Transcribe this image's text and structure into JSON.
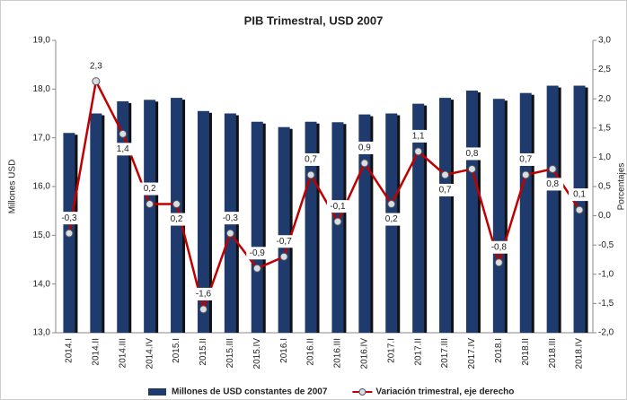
{
  "chart_data": {
    "type": "bar-line",
    "title": "PIB Trimestral, USD 2007",
    "ylabel": "Millones USD",
    "y2label": "Porcentajes",
    "categories": [
      "2014.I",
      "2014.II",
      "2014.III",
      "2014.IV",
      "2015.I",
      "2015.II",
      "2015.III",
      "2015.IV",
      "2016.I",
      "2016.II",
      "2016.III",
      "2016.IV",
      "2017.I",
      "2017.II",
      "2017.III",
      "2017.IV",
      "2018.I",
      "2018.II",
      "2018.III",
      "2018.IV"
    ],
    "series": [
      {
        "name": "Millones de USD constantes de 2007",
        "color": "#1f3b6e",
        "kind": "bar",
        "values": [
          17.1,
          17.5,
          17.75,
          17.78,
          17.82,
          17.55,
          17.5,
          17.33,
          17.22,
          17.33,
          17.32,
          17.48,
          17.5,
          17.7,
          17.82,
          17.97,
          17.8,
          17.92,
          18.07,
          18.07
        ]
      },
      {
        "name": "Variación trimestral, eje derecho",
        "color": "#c00000",
        "kind": "line",
        "axis": "y2",
        "values": [
          -0.3,
          2.3,
          1.4,
          0.2,
          0.2,
          -1.6,
          -0.3,
          -0.9,
          -0.7,
          0.7,
          -0.1,
          0.9,
          0.2,
          1.1,
          0.7,
          0.8,
          -0.8,
          0.7,
          0.8,
          0.1
        ],
        "value_labels": [
          "-0,3",
          "2,3",
          "1,4",
          "0,2",
          "0,2",
          "-1,6",
          "-0,3",
          "-0,9",
          "-0,7",
          "0,7",
          "-0,1",
          "0,9",
          "0,2",
          "1,1",
          "0,7",
          "0,8",
          "-0,8",
          "0,7",
          "0,8",
          "0,1"
        ]
      }
    ],
    "ylim": [
      13,
      19
    ],
    "yticks": [
      {
        "value": 13,
        "label": "13,0"
      },
      {
        "value": 14,
        "label": "14,0"
      },
      {
        "value": 15,
        "label": "15,0"
      },
      {
        "value": 16,
        "label": "16,0"
      },
      {
        "value": 17,
        "label": "17,0"
      },
      {
        "value": 18,
        "label": "18,0"
      },
      {
        "value": 19,
        "label": "19,0"
      }
    ],
    "y2lim": [
      -2,
      3
    ],
    "y2ticks": [
      {
        "value": -2,
        "label": "-2,0"
      },
      {
        "value": -1.5,
        "label": "-1,5"
      },
      {
        "value": -1,
        "label": "-1,0"
      },
      {
        "value": -0.5,
        "label": "-0,5"
      },
      {
        "value": 0,
        "label": "0,0"
      },
      {
        "value": 0.5,
        "label": "0,5"
      },
      {
        "value": 1,
        "label": "1,0"
      },
      {
        "value": 1.5,
        "label": "1,5"
      },
      {
        "value": 2,
        "label": "2,0"
      },
      {
        "value": 2.5,
        "label": "2,5"
      },
      {
        "value": 3,
        "label": "3,0"
      }
    ],
    "grid": false
  }
}
